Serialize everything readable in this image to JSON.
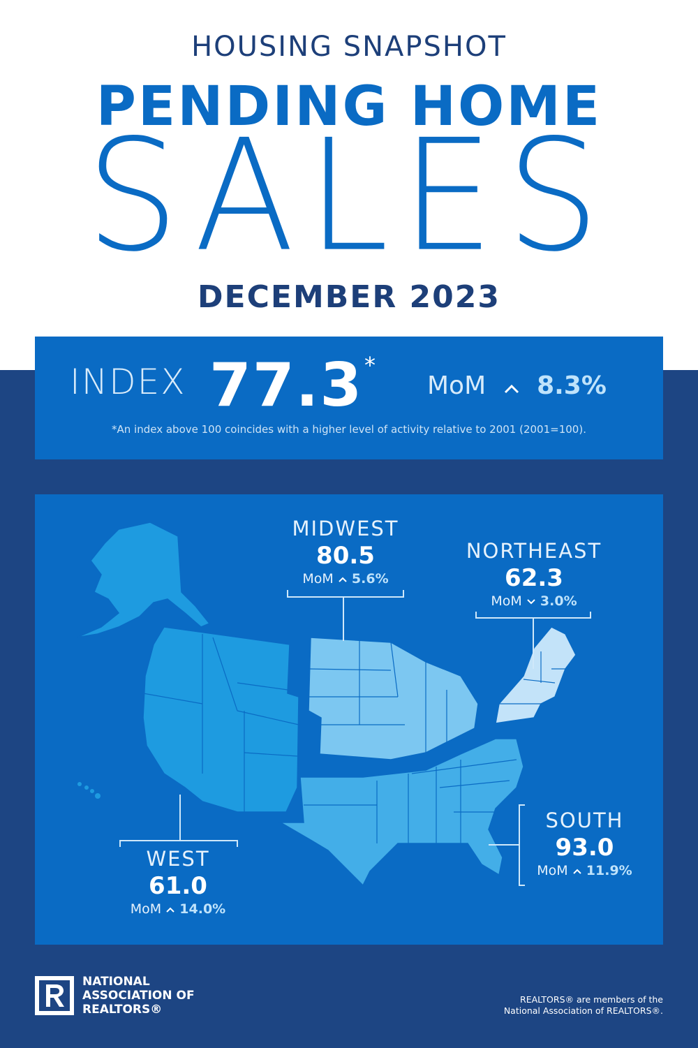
{
  "header": {
    "kicker": "HOUSING SNAPSHOT",
    "headline": "PENDING HOME",
    "big_word": "SALES",
    "period": "DECEMBER 2023"
  },
  "index": {
    "label": "INDEX",
    "value": "77.3",
    "asterisk": "*",
    "mom_label": "MoM",
    "mom_direction": "up",
    "mom_value": "8.3%",
    "footnote": "*An index above 100 coincides with a higher level of activity relative to 2001 (2001=100)."
  },
  "regions": {
    "midwest": {
      "name": "MIDWEST",
      "value": "80.5",
      "mom_label": "MoM",
      "direction": "up",
      "mom_value": "5.6%"
    },
    "northeast": {
      "name": "NORTHEAST",
      "value": "62.3",
      "mom_label": "MoM",
      "direction": "down",
      "mom_value": "3.0%"
    },
    "south": {
      "name": "SOUTH",
      "value": "93.0",
      "mom_label": "MoM",
      "direction": "up",
      "mom_value": "11.9%"
    },
    "west": {
      "name": "WEST",
      "value": "61.0",
      "mom_label": "MoM",
      "direction": "up",
      "mom_value": "14.0%"
    }
  },
  "footer": {
    "org_line1": "NATIONAL",
    "org_line2": "ASSOCIATION OF",
    "org_line3": "REALTORS®",
    "note_line1": "REALTORS® are members of the",
    "note_line2": "National Association of REALTORS®."
  },
  "colors": {
    "navy": "#1d4583",
    "blue": "#0a6bc4",
    "west": "#1e9be0",
    "midwest": "#7cc7f1",
    "south": "#43aee8",
    "northeast": "#c3e3f9"
  }
}
